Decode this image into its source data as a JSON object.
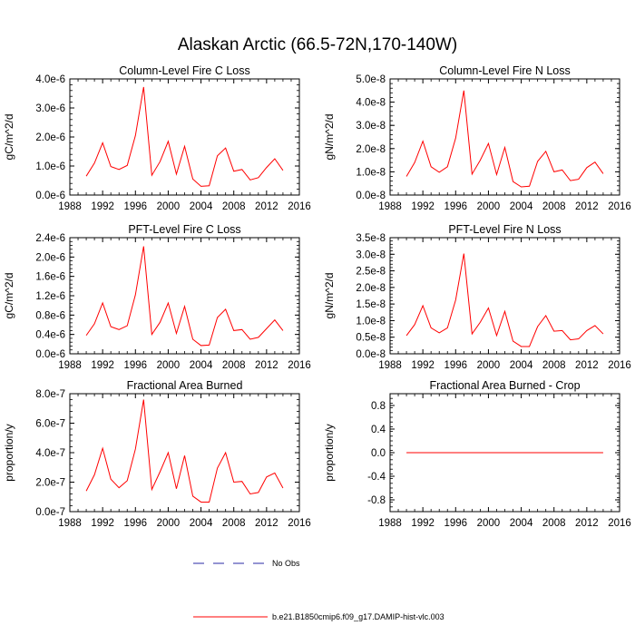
{
  "figure": {
    "title": "Alaskan Arctic (66.5-72N,170-140W)"
  },
  "colors": {
    "model": "#ff0000",
    "obs": "#2a2aa6",
    "axis": "#000000"
  },
  "legend": {
    "obs_label": "No Obs",
    "model_label": "b.e21.B1850cmip6.f09_g17.DAMIP-hist-vlc.003"
  },
  "chart_data": [
    {
      "type": "line",
      "title": "Column-Level Fire C Loss",
      "xlabel": "",
      "ylabel": "gC/m^2/d",
      "xlim": [
        1988,
        2016
      ],
      "xticks": [
        "1988",
        "1992",
        "1996",
        "2000",
        "2004",
        "2008",
        "2012",
        "2016"
      ],
      "ylim": [
        0,
        4e-06
      ],
      "yticks": [
        "0.0e-6",
        "1.0e-6",
        "2.0e-6",
        "3.0e-6",
        "4.0e-6"
      ],
      "x": [
        1990,
        1991,
        1992,
        1993,
        1994,
        1995,
        1996,
        1997,
        1998,
        1999,
        2000,
        2001,
        2002,
        2003,
        2004,
        2005,
        2006,
        2007,
        2008,
        2009,
        2010,
        2011,
        2012,
        2013,
        2014
      ],
      "series": [
        {
          "values": [
            6.5e-07,
            1.1e-06,
            1.8e-06,
            9.8e-07,
            8.8e-07,
            1.02e-06,
            2.05e-06,
            3.72e-06,
            6.8e-07,
            1.15e-06,
            1.85e-06,
            7.2e-07,
            1.68e-06,
            5.5e-07,
            3e-07,
            3.2e-07,
            1.35e-06,
            1.62e-06,
            8.2e-07,
            8.8e-07,
            5.2e-07,
            6e-07,
            9.5e-07,
            1.25e-06,
            8.5e-07
          ]
        }
      ]
    },
    {
      "type": "line",
      "title": "Column-Level Fire N Loss",
      "xlabel": "",
      "ylabel": "gN/m^2/d",
      "xlim": [
        1988,
        2016
      ],
      "xticks": [
        "1988",
        "1992",
        "1996",
        "2000",
        "2004",
        "2008",
        "2012",
        "2016"
      ],
      "ylim": [
        0,
        5e-08
      ],
      "yticks": [
        "0.0e-8",
        "1.0e-8",
        "2.0e-8",
        "3.0e-8",
        "4.0e-8",
        "5.0e-8"
      ],
      "x": [
        1990,
        1991,
        1992,
        1993,
        1994,
        1995,
        1996,
        1997,
        1998,
        1999,
        2000,
        2001,
        2002,
        2003,
        2004,
        2005,
        2006,
        2007,
        2008,
        2009,
        2010,
        2011,
        2012,
        2013,
        2014
      ],
      "series": [
        {
          "values": [
            8e-09,
            1.4e-08,
            2.32e-08,
            1.22e-08,
            9.8e-09,
            1.22e-08,
            2.45e-08,
            4.5e-08,
            9e-09,
            1.5e-08,
            2.22e-08,
            8.8e-09,
            2.05e-08,
            5.8e-09,
            3.5e-09,
            3.8e-09,
            1.45e-08,
            1.88e-08,
            1e-08,
            1.08e-08,
            6.2e-09,
            6.8e-09,
            1.18e-08,
            1.42e-08,
            9.2e-09
          ]
        }
      ]
    },
    {
      "type": "line",
      "title": "PFT-Level Fire C Loss",
      "xlabel": "",
      "ylabel": "gC/m^2/d",
      "xlim": [
        1988,
        2016
      ],
      "xticks": [
        "1988",
        "1992",
        "1996",
        "2000",
        "2004",
        "2008",
        "2012",
        "2016"
      ],
      "ylim": [
        0,
        2.4e-06
      ],
      "yticks": [
        "0.0e-6",
        "0.4e-6",
        "0.8e-6",
        "1.2e-6",
        "1.6e-6",
        "2.0e-6",
        "2.4e-6"
      ],
      "x": [
        1990,
        1991,
        1992,
        1993,
        1994,
        1995,
        1996,
        1997,
        1998,
        1999,
        2000,
        2001,
        2002,
        2003,
        2004,
        2005,
        2006,
        2007,
        2008,
        2009,
        2010,
        2011,
        2012,
        2013,
        2014
      ],
      "series": [
        {
          "values": [
            3.8e-07,
            6.2e-07,
            1.05e-06,
            5.6e-07,
            5e-07,
            5.8e-07,
            1.22e-06,
            2.22e-06,
            4e-07,
            6.5e-07,
            1.05e-06,
            4.2e-07,
            9.8e-07,
            3e-07,
            1.7e-07,
            1.8e-07,
            7.5e-07,
            9.2e-07,
            4.8e-07,
            5e-07,
            3e-07,
            3.4e-07,
            5.2e-07,
            7e-07,
            4.8e-07
          ]
        }
      ]
    },
    {
      "type": "line",
      "title": "PFT-Level Fire N Loss",
      "xlabel": "",
      "ylabel": "gN/m^2/d",
      "xlim": [
        1988,
        2016
      ],
      "xticks": [
        "1988",
        "1992",
        "1996",
        "2000",
        "2004",
        "2008",
        "2012",
        "2016"
      ],
      "ylim": [
        0,
        3.5e-08
      ],
      "yticks": [
        "0.0e-8",
        "0.5e-8",
        "1.0e-8",
        "1.5e-8",
        "2.0e-8",
        "2.5e-8",
        "3.0e-8",
        "3.5e-8"
      ],
      "x": [
        1990,
        1991,
        1992,
        1993,
        1994,
        1995,
        1996,
        1997,
        1998,
        1999,
        2000,
        2001,
        2002,
        2003,
        2004,
        2005,
        2006,
        2007,
        2008,
        2009,
        2010,
        2011,
        2012,
        2013,
        2014
      ],
      "series": [
        {
          "values": [
            5.5e-09,
            8.8e-09,
            1.45e-08,
            7.8e-09,
            6.3e-09,
            7.8e-09,
            1.62e-08,
            3.02e-08,
            6e-09,
            9.5e-09,
            1.38e-08,
            5.5e-09,
            1.28e-08,
            3.8e-09,
            2.2e-09,
            2.2e-09,
            8.2e-09,
            1.15e-08,
            6.8e-09,
            7e-09,
            4.2e-09,
            4.5e-09,
            7e-09,
            8.5e-09,
            6e-09
          ]
        }
      ]
    },
    {
      "type": "line",
      "title": "Fractional Area Burned",
      "xlabel": "",
      "ylabel": "proportion/y",
      "xlim": [
        1988,
        2016
      ],
      "xticks": [
        "1988",
        "1992",
        "1996",
        "2000",
        "2004",
        "2008",
        "2012",
        "2016"
      ],
      "ylim": [
        0,
        8e-07
      ],
      "yticks": [
        "0.0e-7",
        "2.0e-7",
        "4.0e-7",
        "6.0e-7",
        "8.0e-7"
      ],
      "x": [
        1990,
        1991,
        1992,
        1993,
        1994,
        1995,
        1996,
        1997,
        1998,
        1999,
        2000,
        2001,
        2002,
        2003,
        2004,
        2005,
        2006,
        2007,
        2008,
        2009,
        2010,
        2011,
        2012,
        2013,
        2014
      ],
      "series": [
        {
          "values": [
            1.4e-07,
            2.5e-07,
            4.3e-07,
            2.2e-07,
            1.62e-07,
            2.1e-07,
            4.25e-07,
            7.6e-07,
            1.5e-07,
            2.7e-07,
            4e-07,
            1.55e-07,
            3.8e-07,
            1.05e-07,
            6.5e-08,
            6.5e-08,
            2.95e-07,
            4e-07,
            2e-07,
            2.05e-07,
            1.2e-07,
            1.3e-07,
            2.35e-07,
            2.62e-07,
            1.6e-07
          ]
        }
      ]
    },
    {
      "type": "line",
      "title": "Fractional Area Burned - Crop",
      "xlabel": "",
      "ylabel": "proportion/y",
      "xlim": [
        1988,
        2016
      ],
      "xticks": [
        "1988",
        "1992",
        "1996",
        "2000",
        "2004",
        "2008",
        "2012",
        "2016"
      ],
      "ylim": [
        -1.0,
        1.0
      ],
      "yticks": [
        "-0.8",
        "-0.4",
        "0.0",
        "0.4",
        "0.8"
      ],
      "ytick_values": [
        -0.8,
        -0.4,
        0.0,
        0.4,
        0.8
      ],
      "x": [
        1990,
        2014
      ],
      "series": [
        {
          "values": [
            0.0,
            0.0
          ]
        }
      ]
    }
  ]
}
